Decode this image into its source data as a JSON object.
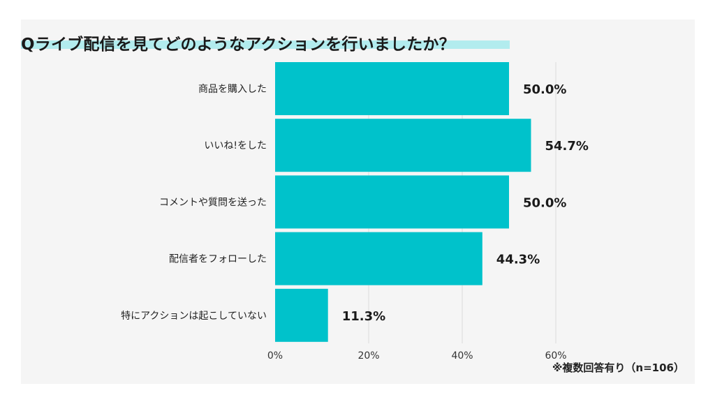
{
  "title": "Qライブ配信を見てどのようなアクションを行いましたか？",
  "note": "※複数回答有り（n=106）",
  "colors": {
    "bar": "#00c2cb",
    "grid": "#dcdcdc",
    "highlight": "#b2ecee"
  },
  "chart_data": {
    "type": "bar",
    "orientation": "horizontal",
    "categories": [
      "商品を購入した",
      "いいね!をした",
      "コメントや質問を送った",
      "配信者をフォローした",
      "特にアクションは起こしていない"
    ],
    "values": [
      50.0,
      54.7,
      50.0,
      44.3,
      11.3
    ],
    "data_labels": [
      "50.0%",
      "54.7%",
      "50.0%",
      "44.3%",
      "11.3%"
    ],
    "x_ticks": [
      "0%",
      "20%",
      "40%",
      "60%"
    ],
    "xlim": [
      0,
      60
    ],
    "grid": true
  }
}
